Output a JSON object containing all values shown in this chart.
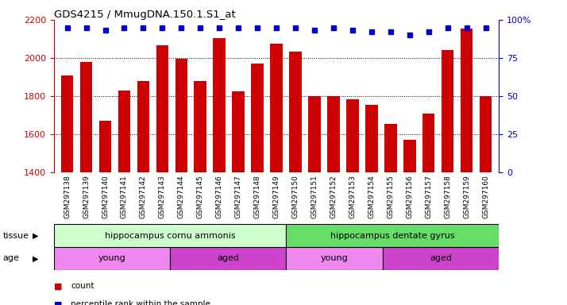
{
  "title": "GDS4215 / MmugDNA.150.1.S1_at",
  "samples": [
    "GSM297138",
    "GSM297139",
    "GSM297140",
    "GSM297141",
    "GSM297142",
    "GSM297143",
    "GSM297144",
    "GSM297145",
    "GSM297146",
    "GSM297147",
    "GSM297148",
    "GSM297149",
    "GSM297150",
    "GSM297151",
    "GSM297152",
    "GSM297153",
    "GSM297154",
    "GSM297155",
    "GSM297156",
    "GSM297157",
    "GSM297158",
    "GSM297159",
    "GSM297160"
  ],
  "counts": [
    1910,
    1980,
    1670,
    1830,
    1880,
    2065,
    1995,
    1880,
    2105,
    1825,
    1970,
    2075,
    2035,
    1800,
    1800,
    1785,
    1755,
    1655,
    1570,
    1710,
    2040,
    2155,
    1800
  ],
  "percentile_ranks": [
    95,
    95,
    93,
    95,
    95,
    95,
    95,
    95,
    95,
    95,
    95,
    95,
    95,
    93,
    95,
    93,
    92,
    92,
    90,
    92,
    95,
    95,
    95
  ],
  "bar_color": "#cc0000",
  "dot_color": "#0000cc",
  "ylim_left": [
    1400,
    2200
  ],
  "ylim_right": [
    0,
    100
  ],
  "yticks_left": [
    1400,
    1600,
    1800,
    2000,
    2200
  ],
  "yticks_right": [
    0,
    25,
    50,
    75,
    100
  ],
  "right_tick_labels": [
    "0",
    "25",
    "50",
    "75",
    "100%"
  ],
  "grid_values": [
    1600,
    1800,
    2000
  ],
  "tissue_groups": [
    {
      "label": "hippocampus cornu ammonis",
      "start": 0,
      "end": 12,
      "color": "#ccffcc"
    },
    {
      "label": "hippocampus dentate gyrus",
      "start": 12,
      "end": 23,
      "color": "#66dd66"
    }
  ],
  "age_groups": [
    {
      "label": "young",
      "start": 0,
      "end": 6,
      "color": "#ee88ee"
    },
    {
      "label": "aged",
      "start": 6,
      "end": 12,
      "color": "#cc44cc"
    },
    {
      "label": "young",
      "start": 12,
      "end": 17,
      "color": "#ee88ee"
    },
    {
      "label": "aged",
      "start": 17,
      "end": 23,
      "color": "#cc44cc"
    }
  ],
  "bg_color": "#ffffff",
  "plot_bg_color": "#ffffff",
  "tick_bg_color": "#d8d8d8"
}
